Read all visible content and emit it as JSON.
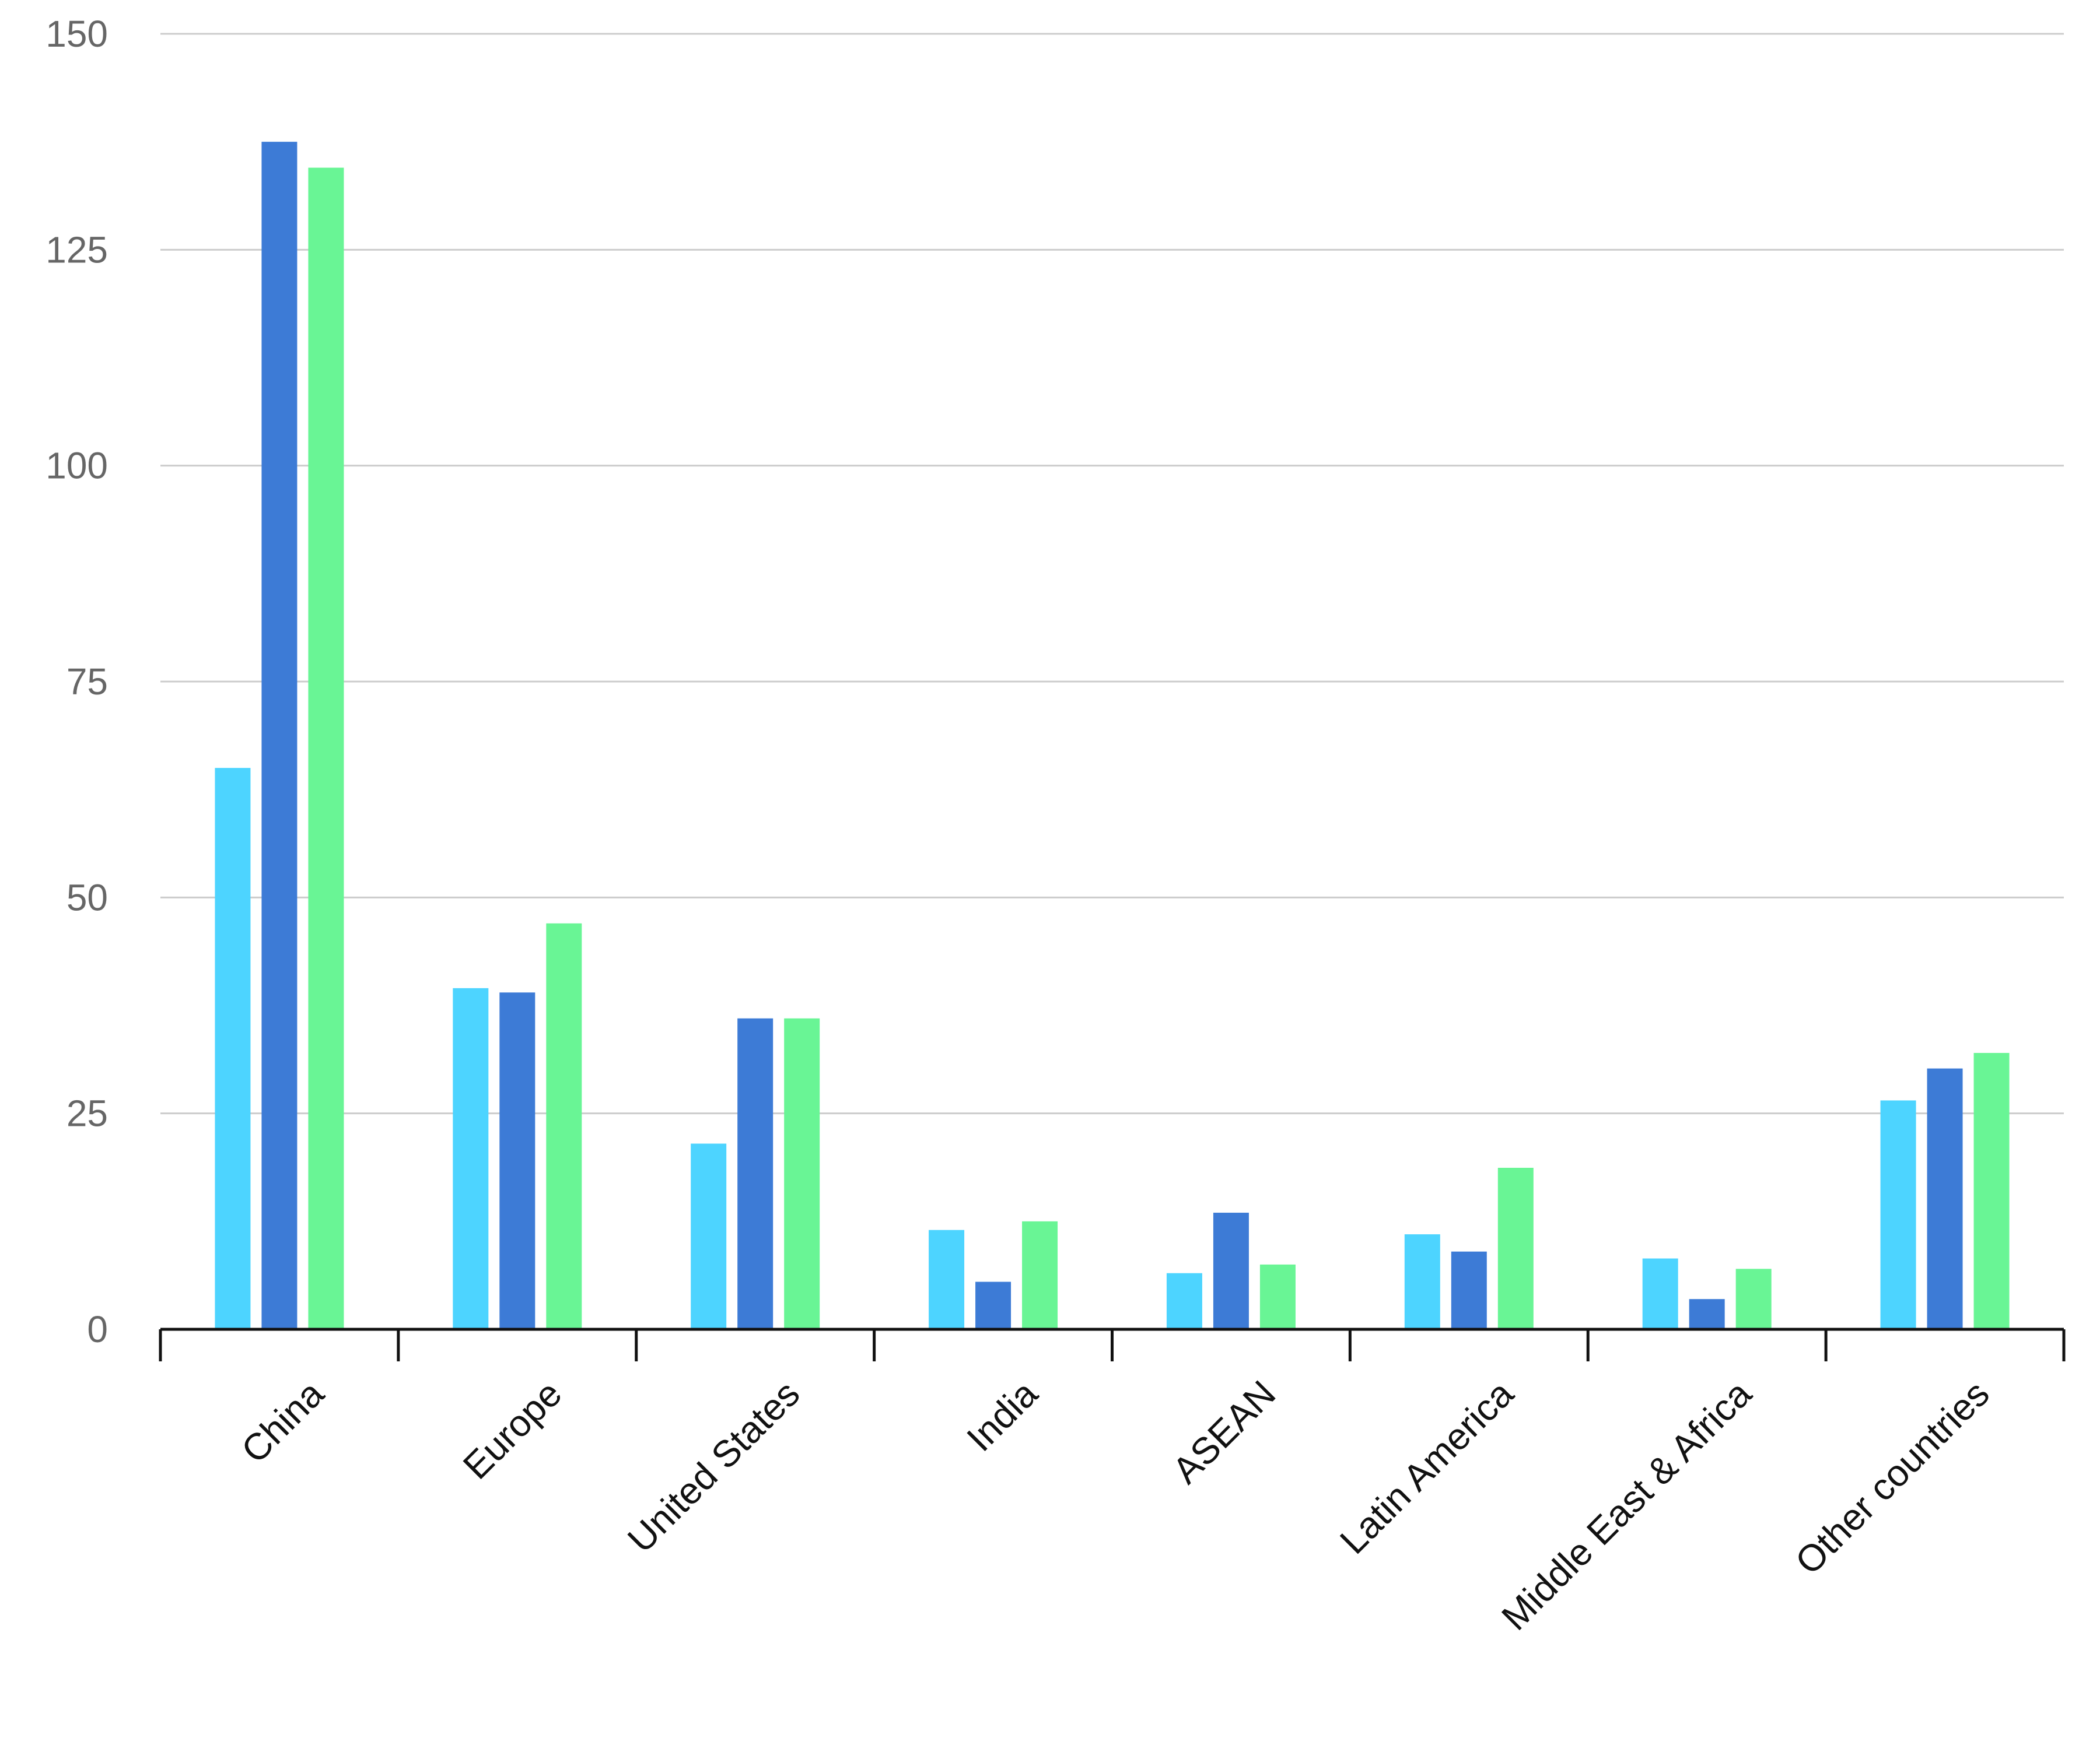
{
  "chart_data": {
    "type": "bar",
    "title": "",
    "xlabel": "",
    "ylabel": "",
    "ylim": [
      0,
      150
    ],
    "yticks": [
      0,
      25,
      50,
      75,
      100,
      125,
      150
    ],
    "grid": true,
    "legend": "none",
    "categories": [
      "China",
      "Europe",
      "United States",
      "India",
      "ASEAN",
      "Latin America",
      "Middle East & Africa",
      "Other countries"
    ],
    "series": [
      {
        "color": "#4dd4ff",
        "values": [
          65,
          39.5,
          21.5,
          11.5,
          6.5,
          11,
          8.2,
          26.5
        ]
      },
      {
        "color": "#3d7bd6",
        "values": [
          137.5,
          39,
          36,
          5.5,
          13.5,
          9,
          3.5,
          30.2
        ]
      },
      {
        "color": "#69f595",
        "values": [
          134.5,
          47,
          36,
          12.5,
          7.5,
          18.7,
          7,
          32
        ]
      }
    ]
  }
}
